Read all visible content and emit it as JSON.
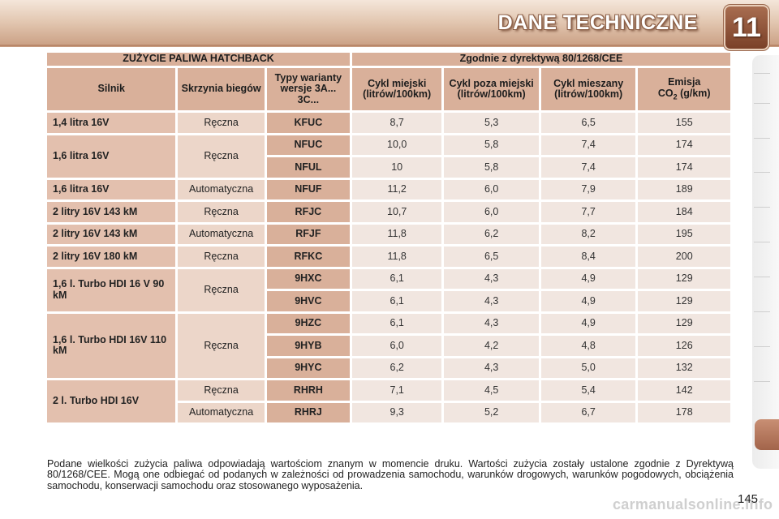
{
  "header": {
    "title": "DANE TECHNICZNE",
    "chapter": "11"
  },
  "table": {
    "title_left": "ZUŻYCIE PALIWA HATCHBACK",
    "title_right": "Zgodnie z dyrektywą 80/1268/CEE",
    "columns": {
      "engine": "Silnik",
      "gearbox": "Skrzynia biegów",
      "variants": "Typy warianty wersje 3A... 3C...",
      "urban": "Cykl miejski (litrów/100km)",
      "extra_urban": "Cykl poza miejski (litrów/100km)",
      "combined": "Cykl mieszany (litrów/100km)",
      "emission_prefix": "Emisja",
      "emission_co": "CO",
      "emission_sub": "2",
      "emission_unit": " (g/km)"
    },
    "rows": [
      {
        "engine": "1,4 litra 16V",
        "gearbox": "Ręczna",
        "code": "KFUC",
        "urban": "8,7",
        "extra": "5,3",
        "mixed": "6,5",
        "co2": "155"
      },
      {
        "engine": "1,6 litra 16V",
        "gearbox": "Ręczna",
        "code": "NFUC",
        "urban": "10,0",
        "extra": "5,8",
        "mixed": "7,4",
        "co2": "174"
      },
      {
        "engine": "",
        "gearbox": "",
        "code": "NFUL",
        "urban": "10",
        "extra": "5,8",
        "mixed": "7,4",
        "co2": "174"
      },
      {
        "engine": "1,6 litra 16V",
        "gearbox": "Automatyczna",
        "code": "NFUF",
        "urban": "11,2",
        "extra": "6,0",
        "mixed": "7,9",
        "co2": "189"
      },
      {
        "engine": "2 litry 16V 143 kM",
        "gearbox": "Ręczna",
        "code": "RFJC",
        "urban": "10,7",
        "extra": "6,0",
        "mixed": "7,7",
        "co2": "184"
      },
      {
        "engine": "2 litry 16V 143 kM",
        "gearbox": "Automatyczna",
        "code": "RFJF",
        "urban": "11,8",
        "extra": "6,2",
        "mixed": "8,2",
        "co2": "195"
      },
      {
        "engine": "2 litry 16V 180 kM",
        "gearbox": "Ręczna",
        "code": "RFKC",
        "urban": "11,8",
        "extra": "6,5",
        "mixed": "8,4",
        "co2": "200"
      },
      {
        "engine": "1,6 l. Turbo HDI 16 V 90 kM",
        "gearbox": "Ręczna",
        "code": "9HXC",
        "urban": "6,1",
        "extra": "4,3",
        "mixed": "4,9",
        "co2": "129"
      },
      {
        "engine": "",
        "gearbox": "",
        "code": "9HVC",
        "urban": "6,1",
        "extra": "4,3",
        "mixed": "4,9",
        "co2": "129"
      },
      {
        "engine": "1,6 l. Turbo HDI 16V 110 kM",
        "gearbox": "Ręczna",
        "code": "9HZC",
        "urban": "6,1",
        "extra": "4,3",
        "mixed": "4,9",
        "co2": "129"
      },
      {
        "engine": "",
        "gearbox": "",
        "code": "9HYB",
        "urban": "6,0",
        "extra": "4,2",
        "mixed": "4,8",
        "co2": "126"
      },
      {
        "engine": "",
        "gearbox": "",
        "code": "9HYC",
        "urban": "6,2",
        "extra": "4,3",
        "mixed": "5,0",
        "co2": "132"
      },
      {
        "engine": "2 l. Turbo HDI 16V",
        "gearbox": "Ręczna",
        "code": "RHRH",
        "urban": "7,1",
        "extra": "4,5",
        "mixed": "5,4",
        "co2": "142"
      },
      {
        "engine": "",
        "gearbox": "Automatyczna",
        "code": "RHRJ",
        "urban": "9,3",
        "extra": "5,2",
        "mixed": "6,7",
        "co2": "178"
      }
    ]
  },
  "note": "Podane wielkości zużycia paliwa odpowiadają wartościom znanym w momencie druku. Wartości zużycia zostały ustalone zgodnie z Dyrektywą 80/1268/CEE. Mogą one odbiegać od podanych w zależności od prowadzenia samochodu, warunków drogowych, warunków pogodowych, obciążenia samochodu, konserwacji samochodu oraz stosowanego wyposażenia.",
  "page_number": "145",
  "watermark": "carmanualsonline.info",
  "colors": {
    "header_cell": "#d9b09a",
    "label_cell": "#e3c0ae",
    "value_cell": "#f1e6e0",
    "accent": "#a2644a"
  }
}
